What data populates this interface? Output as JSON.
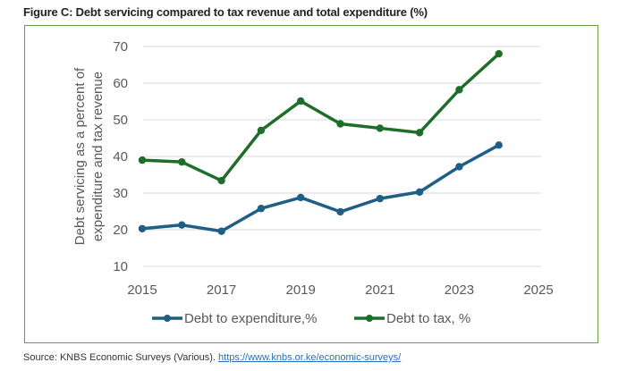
{
  "title": "Figure C: Debt servicing compared to tax revenue and total expenditure (%)",
  "source": {
    "text": "Source: KNBS Economic Surveys (Various).",
    "link": "https://www.knbs.or.ke/economic-surveys/"
  },
  "chart_data": {
    "type": "line",
    "title": "Figure C: Debt servicing compared to tax revenue and total expenditure (%)",
    "xlabel": "",
    "ylabel_lines": [
      "Debt servicing as a percent of",
      "expenditure and tax revenue"
    ],
    "x": [
      2015,
      2016,
      2017,
      2018,
      2019,
      2020,
      2021,
      2022,
      2023,
      2024
    ],
    "xlim": [
      2015,
      2025
    ],
    "ylim": [
      10,
      70
    ],
    "xticks": [
      "2015",
      "2017",
      "2019",
      "2021",
      "2023",
      "2025"
    ],
    "yticks": [
      "10",
      "20",
      "30",
      "40",
      "50",
      "60",
      "70"
    ],
    "grid": true,
    "legend": "bottom",
    "series": [
      {
        "name": "Debt to expenditure,%",
        "color": "#1f5f85",
        "values": [
          20.3,
          21.3,
          19.6,
          25.8,
          28.8,
          24.9,
          28.5,
          30.3,
          37.2,
          43.1
        ]
      },
      {
        "name": "Debt to tax, %",
        "color": "#1e6e2a",
        "values": [
          39.0,
          38.5,
          33.4,
          47.1,
          55.1,
          48.9,
          47.7,
          46.5,
          58.2,
          68.0
        ]
      }
    ]
  }
}
